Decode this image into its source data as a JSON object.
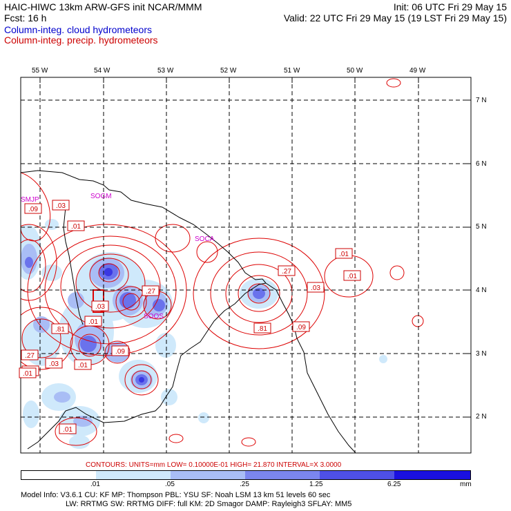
{
  "header": {
    "line1_left": "HAIC-HIWC 13km ARW-GFS init   NCAR/MMM",
    "line1_right": "Init: 06 UTC Fri 29 May 15",
    "line2_left": "Fcst:   16 h",
    "line2_right": "Valid: 22 UTC Fri 29 May 15 (19 LST Fri 29 May 15)",
    "field1": "Column-integ. cloud hydrometeors",
    "field2": "Column-integ. precip. hydrometeors"
  },
  "axes": {
    "lon_labels": [
      "55 W",
      "54 W",
      "53 W",
      "52 W",
      "51 W",
      "50 W",
      "49 W"
    ],
    "lat_labels": [
      "7 N",
      "6 N",
      "5 N",
      "4 N",
      "3 N",
      "2 N"
    ]
  },
  "sites": [
    "SMJP",
    "SOGM",
    "SOCA",
    "SOOS"
  ],
  "contour_labels": [
    ".09",
    ".03",
    ".01",
    ".27",
    ".03",
    ".01",
    ".81",
    ".27",
    ".03",
    ".01",
    ".01",
    ".09",
    ".01",
    ".01",
    ".27",
    ".03",
    ".81",
    ".09",
    ".01",
    ".01"
  ],
  "contour_info": {
    "text": "CONTOURS:  UNITS=mm  LOW= 0.10000E-01  HIGH=  21.870     INTERVAL=X  3.0000"
  },
  "colorbar": {
    "ticks": [
      ".01",
      ".05",
      ".25",
      "1.25",
      "6.25"
    ],
    "unit": "mm",
    "colors": [
      "#ffffff",
      "#cfe9fb",
      "#a9bdf5",
      "#7b86ee",
      "#4e50e6",
      "#1a10e0"
    ]
  },
  "model_info": {
    "line1": "Model Info: V3.6.1    CU: KF      MP: Thompson     PBL: YSU        SF: Noah LSM     13 km    51 levels   60 sec",
    "line2": "LW: RRTMG    SW: RRTMG   DIFF: full    KM: 2D Smagor DAMP: Rayleigh3  SFLAY: MM5"
  }
}
